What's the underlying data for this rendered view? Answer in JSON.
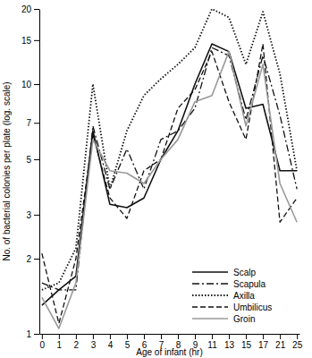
{
  "chart_data": {
    "type": "line",
    "x_label": "Age of infant (hr)",
    "y_label": "No. of bacterial colonies per plate (log. scale)",
    "categories": [
      "0",
      "1",
      "2",
      "3",
      "4",
      "5",
      "6",
      "7",
      "8",
      "9",
      "11",
      "13",
      "15",
      "17",
      "21",
      "25"
    ],
    "log": "y",
    "ylim": [
      1,
      20
    ],
    "yticks": [
      1,
      2,
      3,
      5,
      7,
      10,
      15,
      20
    ],
    "legend": "lower right",
    "series": [
      {
        "name": "Scalp",
        "color": "#111111",
        "line_style": "solid",
        "values": [
          1.3,
          1.5,
          1.7,
          6.5,
          3.3,
          3.2,
          3.5,
          5,
          6.5,
          10,
          14.5,
          13.5,
          8,
          8.3,
          4.5,
          4.5
        ]
      },
      {
        "name": "Scapula",
        "color": "#111111",
        "line_style": "dashdot",
        "values": [
          1.6,
          1.5,
          1.5,
          6.8,
          3.8,
          5.5,
          3.8,
          6,
          6.5,
          8,
          14,
          13,
          7.2,
          13,
          7.5,
          3.8
        ]
      },
      {
        "name": "Axilla",
        "color": "#111111",
        "line_style": "dotted",
        "values": [
          1.5,
          1.6,
          2.2,
          10,
          3.8,
          6.5,
          9,
          10.5,
          12,
          14,
          20,
          18.5,
          12,
          19.5,
          11,
          4.5
        ]
      },
      {
        "name": "Umbilicus",
        "color": "#111111",
        "line_style": "dashed",
        "values": [
          2.1,
          1.1,
          2,
          6.3,
          3.5,
          2.9,
          4.5,
          5,
          8,
          9.5,
          13.5,
          8.5,
          6,
          14.5,
          2.8,
          3.5
        ]
      },
      {
        "name": "Groin",
        "color": "#999999",
        "line_style": "solid",
        "values": [
          1.4,
          1.05,
          1.6,
          6,
          4.5,
          4.4,
          4,
          5,
          6,
          8.5,
          9,
          13.5,
          6.8,
          12,
          4,
          2.8
        ]
      }
    ]
  }
}
